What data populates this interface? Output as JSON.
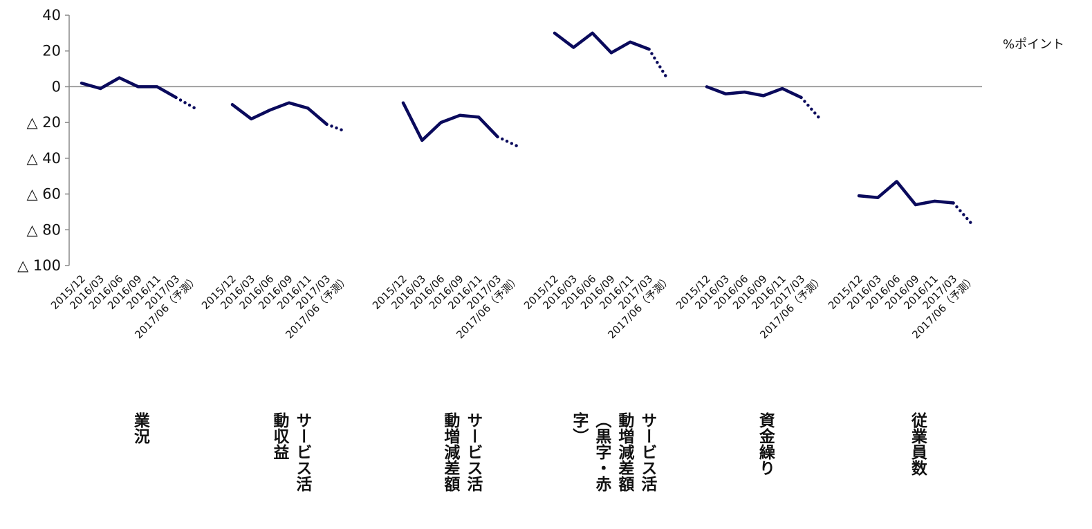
{
  "chart_data": {
    "type": "line",
    "unit_label": "%ポイント",
    "ylim": [
      -100,
      40
    ],
    "yticks": [
      {
        "value": 40,
        "label": "40"
      },
      {
        "value": 20,
        "label": "20"
      },
      {
        "value": 0,
        "label": "0"
      },
      {
        "value": -20,
        "label": "△ 20"
      },
      {
        "value": -40,
        "label": "△ 40"
      },
      {
        "value": -60,
        "label": "△ 60"
      },
      {
        "value": -80,
        "label": "△ 80"
      },
      {
        "value": -100,
        "label": "△ 100"
      }
    ],
    "periods": [
      "2015/12",
      "2016/03",
      "2016/06",
      "2016/09",
      "2016/11",
      "2017/03",
      "2017/06（予測）"
    ],
    "line_color": "#0a0a5c",
    "forecast_style": "dotted",
    "groups": [
      {
        "label": "業況",
        "values": [
          2,
          -1,
          5,
          0,
          0,
          -6,
          -12
        ]
      },
      {
        "label": "サービス活動収益",
        "values": [
          -10,
          -18,
          -13,
          -9,
          -12,
          -21,
          -25
        ]
      },
      {
        "label": "サービス活動増減差額",
        "values": [
          -9,
          -30,
          -20,
          -16,
          -17,
          -28,
          -33
        ]
      },
      {
        "label": "サービス活動増減差額（黒字・赤字）",
        "values": [
          30,
          22,
          30,
          19,
          25,
          21,
          4
        ]
      },
      {
        "label": "資金繰り",
        "values": [
          0,
          -4,
          -3,
          -5,
          -1,
          -6,
          -18
        ]
      },
      {
        "label": "従業員数",
        "values": [
          -61,
          -62,
          -53,
          -66,
          -64,
          -65,
          -77
        ]
      }
    ]
  }
}
